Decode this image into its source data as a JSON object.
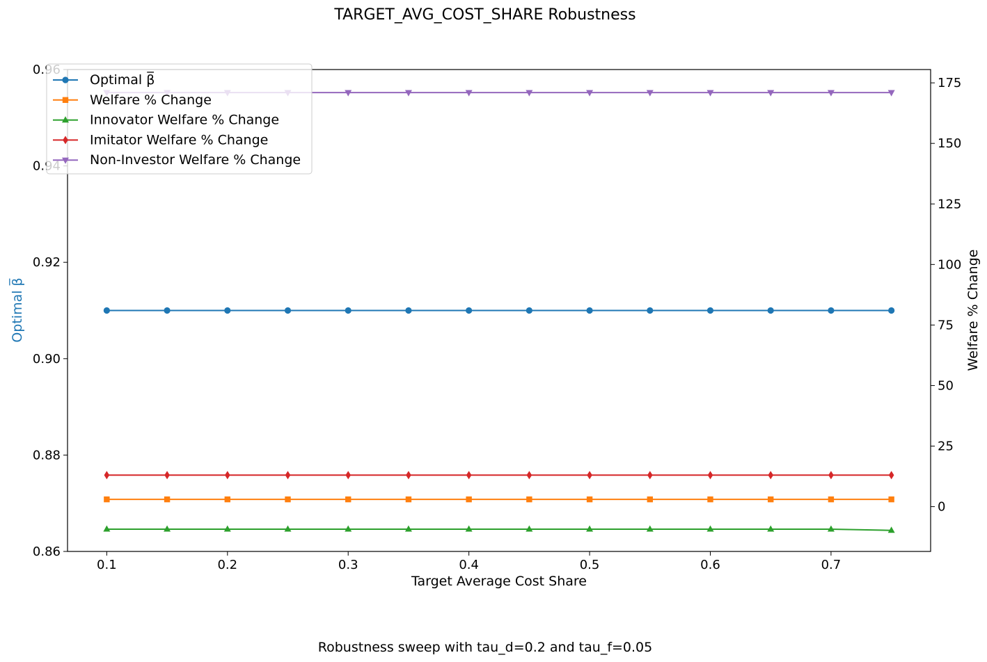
{
  "chart_data": {
    "type": "line",
    "title": "TARGET_AVG_COST_SHARE Robustness",
    "caption": "Robustness sweep with tau_d=0.2 and tau_f=0.05",
    "xlabel": "Target Average Cost Share",
    "ylabel_left": "Optimal β̅",
    "ylabel_left_color": "#1f77b4",
    "ylabel_right": "Welfare % Change",
    "xlim": [
      0.0675,
      0.7825
    ],
    "ylim_left": [
      0.86,
      0.96
    ],
    "ylim_right": [
      -18.5,
      180.5
    ],
    "x_ticks": [
      0.1,
      0.2,
      0.3,
      0.4,
      0.5,
      0.6,
      0.7
    ],
    "x_tick_labels": [
      "0.1",
      "0.2",
      "0.3",
      "0.4",
      "0.5",
      "0.6",
      "0.7"
    ],
    "y_left_ticks": [
      0.86,
      0.88,
      0.9,
      0.92,
      0.94,
      0.96
    ],
    "y_left_tick_labels": [
      "0.86",
      "0.88",
      "0.90",
      "0.92",
      "0.94",
      "0.96"
    ],
    "y_right_ticks": [
      0,
      25,
      50,
      75,
      100,
      125,
      150,
      175
    ],
    "y_right_tick_labels": [
      "0",
      "25",
      "50",
      "75",
      "100",
      "125",
      "150",
      "175"
    ],
    "grid": false,
    "legend_position": "top-left",
    "x": [
      0.1,
      0.15,
      0.2,
      0.25,
      0.3,
      0.35,
      0.4,
      0.45,
      0.5,
      0.55,
      0.6,
      0.65,
      0.7,
      0.75
    ],
    "series": [
      {
        "name": "Optimal β̅",
        "axis": "left",
        "color": "#1f77b4",
        "marker": "circle",
        "values": [
          0.91,
          0.91,
          0.91,
          0.91,
          0.91,
          0.91,
          0.91,
          0.91,
          0.91,
          0.91,
          0.91,
          0.91,
          0.91,
          0.91
        ]
      },
      {
        "name": "Welfare % Change",
        "axis": "right",
        "color": "#ff7f0e",
        "marker": "square",
        "values": [
          3,
          3,
          3,
          3,
          3,
          3,
          3,
          3,
          3,
          3,
          3,
          3,
          3,
          3
        ]
      },
      {
        "name": "Innovator Welfare % Change",
        "axis": "right",
        "color": "#2ca02c",
        "marker": "triangle-up",
        "values": [
          -9.3,
          -9.3,
          -9.3,
          -9.3,
          -9.3,
          -9.3,
          -9.3,
          -9.3,
          -9.3,
          -9.3,
          -9.3,
          -9.3,
          -9.3,
          -9.8
        ]
      },
      {
        "name": "Imitator Welfare % Change",
        "axis": "right",
        "color": "#d62728",
        "marker": "diamond",
        "values": [
          13,
          13,
          13,
          13,
          13,
          13,
          13,
          13,
          13,
          13,
          13,
          13,
          13,
          13
        ]
      },
      {
        "name": "Non-Investor Welfare % Change",
        "axis": "right",
        "color": "#9467bd",
        "marker": "triangle-down",
        "values": [
          171,
          171,
          171,
          171,
          171,
          171,
          171,
          171,
          171,
          171,
          171,
          171,
          171,
          171
        ]
      }
    ]
  }
}
